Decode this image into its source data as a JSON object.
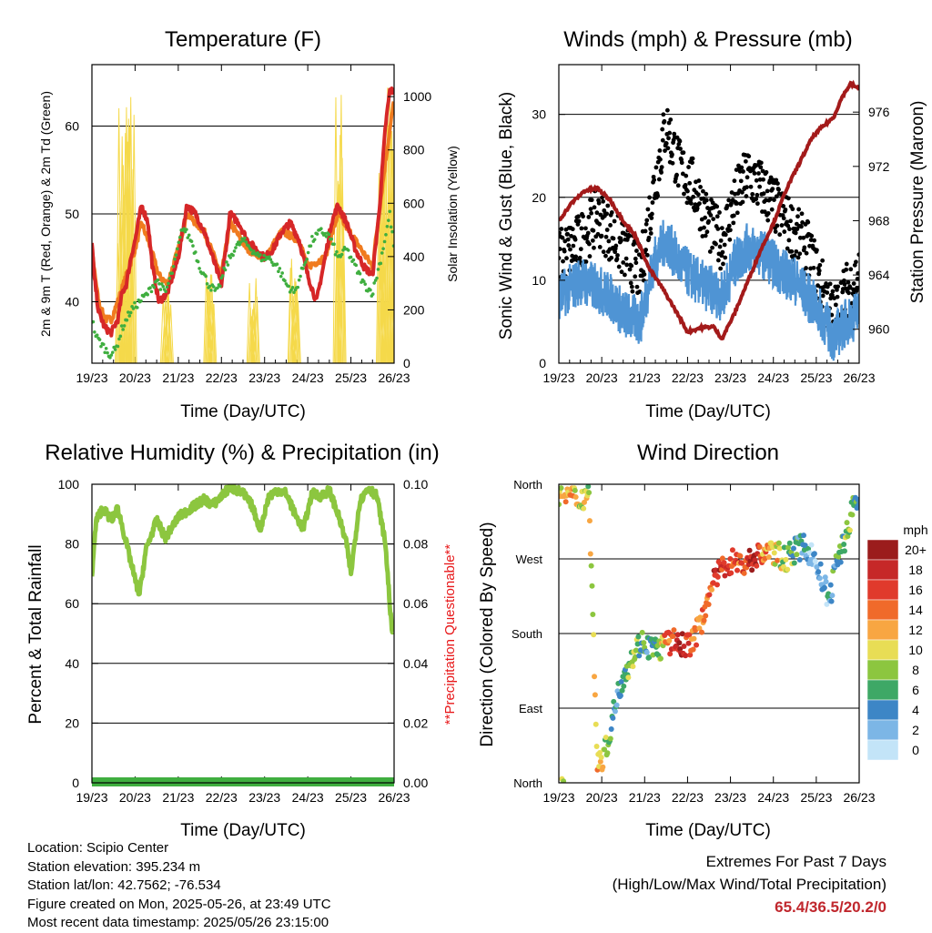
{
  "charts": {
    "temperature": {
      "title": "Temperature (F)",
      "xlabel": "Time (Day/UTC)",
      "ylabel": "2m & 9m T (Red, Orange) & 2m Td (Green)",
      "ylabel2": "Solar Insolation (Yellow)"
    },
    "winds": {
      "title": "Winds (mph) & Pressure (mb)",
      "xlabel": "Time (Day/UTC)",
      "ylabel": "Sonic Wind & Gust (Blue, Black)",
      "ylabel2": "Station Pressure (Maroon)"
    },
    "humidity": {
      "title": "Relative Humidity (%) & Precipitation (in)",
      "xlabel": "Time (Day/UTC)",
      "ylabel": "Percent & Total Rainfall",
      "ylabel2": "**Precipitation Questionable**"
    },
    "direction": {
      "title": "Wind Direction",
      "xlabel": "Time (Day/UTC)",
      "ylabel": "Direction (Colored By Speed)",
      "legend_title": "mph"
    }
  },
  "info": {
    "location": "Location: Scipio Center",
    "elevation": "Station elevation: 395.234 m",
    "latlon": "Station lat/lon: 42.7562; -76.534",
    "created": "Figure created on Mon, 2025-05-26, at 23:49 UTC",
    "timestamp": "Most recent data timestamp: 2025/05/26 23:15:00"
  },
  "extremes": {
    "title": "Extremes For Past 7 Days",
    "subtitle": "(High/Low/Max Wind/Total Precipitation)",
    "values": "65.4/36.5/20.2/0"
  },
  "colors": {
    "temp2m": "#d62728",
    "temp9m": "#f07b1f",
    "dewpoint": "#3fae3f",
    "solar": "#f5d94a",
    "wind": "#4f94d4",
    "gust": "#000000",
    "pressure": "#a31a1a",
    "rh": "#8cc63f",
    "precip": "#3fae3f",
    "questionable": "#e8191b"
  },
  "chart_data": [
    {
      "type": "line",
      "name": "temperature",
      "x_ticks": [
        "19/23",
        "20/23",
        "21/23",
        "22/23",
        "23/23",
        "24/23",
        "25/23",
        "26/23"
      ],
      "ylim": [
        33,
        67
      ],
      "y_ticks": [
        40,
        50,
        60
      ],
      "y2lim": [
        0,
        1120
      ],
      "y2_ticks": [
        0,
        200,
        400,
        600,
        800,
        1000
      ],
      "series": [
        {
          "name": "2m T",
          "axis": "left",
          "x": [
            0,
            0.05,
            0.15,
            0.3,
            0.45,
            0.6,
            0.7,
            0.8,
            0.9,
            1.0,
            1.15,
            1.3,
            1.4,
            1.55,
            1.75,
            2.0,
            2.2,
            2.4,
            2.6,
            2.8,
            3.0,
            3.2,
            3.4,
            3.6,
            3.8,
            4.0,
            4.2,
            4.4,
            4.6,
            4.8,
            5.0,
            5.2,
            5.4,
            5.55,
            5.7,
            5.9,
            6.1,
            6.3,
            6.5,
            6.65,
            6.8,
            6.9,
            7.0
          ],
          "y": [
            47,
            43,
            39,
            37,
            36.5,
            38,
            41,
            42,
            45,
            47,
            51,
            49,
            44,
            40,
            41,
            45,
            51,
            50,
            48,
            45,
            42,
            50,
            49,
            47,
            46,
            45,
            46,
            48,
            49,
            47,
            43,
            40,
            45,
            49,
            51,
            49,
            46,
            44,
            43,
            50,
            60,
            64,
            64
          ]
        },
        {
          "name": "9m T",
          "axis": "left",
          "x": [
            0,
            0.15,
            0.3,
            0.45,
            0.6,
            0.8,
            1.0,
            1.15,
            1.3,
            1.55,
            1.75,
            2.0,
            2.2,
            2.6,
            3.0,
            3.2,
            3.6,
            4.0,
            4.4,
            4.8,
            5.0,
            5.4,
            5.7,
            6.1,
            6.5,
            6.8,
            7.0
          ],
          "y": [
            46,
            40,
            38,
            38,
            40,
            43,
            46,
            49,
            47,
            43,
            42,
            46,
            50,
            48,
            43,
            49,
            46,
            45,
            48,
            47,
            44,
            45,
            50,
            47,
            44,
            56,
            63
          ]
        },
        {
          "name": "2m Td",
          "axis": "left",
          "x": [
            0,
            0.1,
            0.25,
            0.4,
            0.55,
            0.7,
            0.9,
            1.1,
            1.3,
            1.5,
            1.7,
            1.9,
            2.1,
            2.3,
            2.5,
            2.7,
            2.9,
            3.1,
            3.3,
            3.5,
            3.7,
            3.9,
            4.1,
            4.3,
            4.5,
            4.7,
            4.9,
            5.1,
            5.3,
            5.5,
            5.7,
            5.9,
            6.1,
            6.3,
            6.5,
            6.7,
            6.9,
            7.0
          ],
          "y": [
            38,
            36,
            35,
            34,
            34.5,
            37,
            39,
            40,
            41,
            42.5,
            41,
            44,
            48.5,
            47,
            44,
            42,
            41,
            44,
            46,
            47,
            46,
            45,
            45,
            44,
            42,
            41,
            44,
            47,
            48,
            47.5,
            45,
            46,
            44,
            42,
            41,
            45,
            50,
            46
          ]
        },
        {
          "name": "Solar Insolation",
          "axis": "right",
          "peaks": [
            [
              0.7,
              1000
            ],
            [
              0.9,
              1110
            ],
            [
              1.75,
              300
            ],
            [
              2.75,
              350
            ],
            [
              3.75,
              330
            ],
            [
              4.7,
              420
            ],
            [
              5.75,
              1050
            ],
            [
              6.75,
              1060
            ],
            [
              6.95,
              1090
            ]
          ]
        }
      ]
    },
    {
      "type": "scatter",
      "name": "winds",
      "x_ticks": [
        "19/23",
        "20/23",
        "21/23",
        "22/23",
        "23/23",
        "24/23",
        "25/23",
        "26/23"
      ],
      "ylim": [
        0,
        36
      ],
      "y_ticks": [
        0,
        10,
        20,
        30
      ],
      "y2lim": [
        957.5,
        979.5
      ],
      "y2_ticks": [
        960,
        964,
        968,
        972,
        976
      ],
      "series": [
        {
          "name": "Gust",
          "axis": "left",
          "x": [
            0,
            0.5,
            0.9,
            1.2,
            1.5,
            1.9,
            2.2,
            2.5,
            2.8,
            3.2,
            3.5,
            3.8,
            4.1,
            4.4,
            4.8,
            5.2,
            5.5,
            5.8,
            6.1,
            6.4,
            6.7,
            7.0
          ],
          "y": [
            12,
            14,
            17,
            15,
            13,
            10,
            20,
            28,
            23,
            20,
            16,
            14,
            19,
            22,
            20,
            17,
            15,
            13,
            9,
            5,
            8,
            10
          ]
        },
        {
          "name": "Sonic Wind",
          "axis": "left",
          "x": [
            0,
            0.5,
            0.9,
            1.2,
            1.5,
            1.9,
            2.2,
            2.5,
            2.8,
            3.2,
            3.5,
            3.8,
            4.1,
            4.4,
            4.8,
            5.2,
            5.5,
            5.8,
            6.1,
            6.4,
            6.7,
            7.0
          ],
          "y": [
            8,
            10,
            9,
            8,
            6,
            5,
            12,
            15,
            12,
            10,
            9,
            8,
            12,
            14,
            13,
            11,
            10,
            8,
            6,
            3,
            5,
            6
          ]
        },
        {
          "name": "Station Pressure",
          "axis": "right",
          "x": [
            0,
            0.3,
            0.6,
            0.9,
            1.2,
            1.5,
            1.8,
            2.1,
            2.4,
            2.7,
            3.0,
            3.3,
            3.6,
            3.8,
            4.1,
            4.4,
            4.7,
            5.0,
            5.3,
            5.6,
            5.9,
            6.1,
            6.4,
            6.6,
            6.8,
            7.0
          ],
          "y": [
            968,
            969.3,
            970.2,
            970.4,
            969.5,
            968,
            966.8,
            964.5,
            963.1,
            961.5,
            959.8,
            960.1,
            960.2,
            959.3,
            961.2,
            963.5,
            965.8,
            967.8,
            970.3,
            972.2,
            974.1,
            974.8,
            975.6,
            977.1,
            978.1,
            977.7
          ]
        }
      ]
    },
    {
      "type": "line",
      "name": "humidity",
      "x_ticks": [
        "19/23",
        "20/23",
        "21/23",
        "22/23",
        "23/23",
        "24/23",
        "25/23",
        "26/23"
      ],
      "ylim": [
        0,
        100
      ],
      "y_ticks": [
        0,
        20,
        40,
        60,
        80,
        100
      ],
      "y2lim": [
        0,
        0.1
      ],
      "y2_ticks": [
        "0.00",
        "0.02",
        "0.04",
        "0.06",
        "0.08",
        "0.10"
      ],
      "series": [
        {
          "name": "RH",
          "axis": "left",
          "x": [
            0,
            0.1,
            0.25,
            0.45,
            0.6,
            0.8,
            1.0,
            1.1,
            1.25,
            1.5,
            1.7,
            2.0,
            2.3,
            2.6,
            2.8,
            3.0,
            3.2,
            3.5,
            3.7,
            3.9,
            4.1,
            4.3,
            4.5,
            4.7,
            4.9,
            5.1,
            5.3,
            5.5,
            5.7,
            5.9,
            6.0,
            6.2,
            6.4,
            6.6,
            6.8,
            6.95
          ],
          "y": [
            70,
            88,
            92,
            88,
            92,
            80,
            68,
            63,
            78,
            88,
            82,
            89,
            92,
            95,
            93,
            96,
            99,
            97,
            93,
            85,
            96,
            98,
            97,
            90,
            85,
            97,
            96,
            98,
            90,
            80,
            70,
            94,
            99,
            96,
            80,
            50
          ]
        },
        {
          "name": "Precip",
          "axis": "right",
          "x": [
            0,
            7
          ],
          "y": [
            0,
            0
          ]
        }
      ]
    },
    {
      "type": "scatter",
      "name": "direction",
      "x_ticks": [
        "19/23",
        "20/23",
        "21/23",
        "22/23",
        "23/23",
        "24/23",
        "25/23",
        "26/23"
      ],
      "y_ticks": [
        "North",
        "West",
        "South",
        "East",
        "North"
      ],
      "ylim": [
        0,
        360
      ],
      "legend": [
        "20+",
        "18",
        "16",
        "14",
        "12",
        "10",
        "8",
        "6",
        "4",
        "2",
        "0"
      ],
      "legend_colors": [
        "#9b1c1c",
        "#c62828",
        "#e03a2c",
        "#f06a2a",
        "#f8a642",
        "#e8dd55",
        "#8cc63f",
        "#3ea866",
        "#3d86c6",
        "#7cb6e6",
        "#c3e4f8"
      ],
      "series": [
        {
          "name": "Direction",
          "x": [
            0.1,
            0.3,
            0.5,
            0.7,
            0.9,
            1.1,
            1.3,
            1.5,
            1.7,
            1.9,
            2.1,
            2.3,
            2.5,
            2.7,
            2.9,
            3.1,
            3.3,
            3.5,
            3.7,
            3.9,
            4.1,
            4.3,
            4.5,
            4.7,
            4.9,
            5.1,
            5.3,
            5.5,
            5.7,
            5.9,
            6.1,
            6.3,
            6.5,
            6.7,
            6.9
          ],
          "y": [
            350,
            345,
            340,
            352,
            20,
            40,
            90,
            130,
            150,
            170,
            165,
            160,
            168,
            170,
            165,
            170,
            190,
            230,
            250,
            265,
            268,
            262,
            270,
            275,
            280,
            275,
            270,
            280,
            285,
            275,
            250,
            220,
            270,
            300,
            340
          ],
          "speed": [
            10,
            12,
            8,
            10,
            12,
            8,
            4,
            6,
            8,
            6,
            4,
            6,
            14,
            16,
            18,
            14,
            12,
            14,
            18,
            16,
            14,
            16,
            18,
            14,
            12,
            10,
            8,
            6,
            4,
            2,
            2,
            4,
            6,
            8,
            6
          ]
        }
      ]
    }
  ]
}
